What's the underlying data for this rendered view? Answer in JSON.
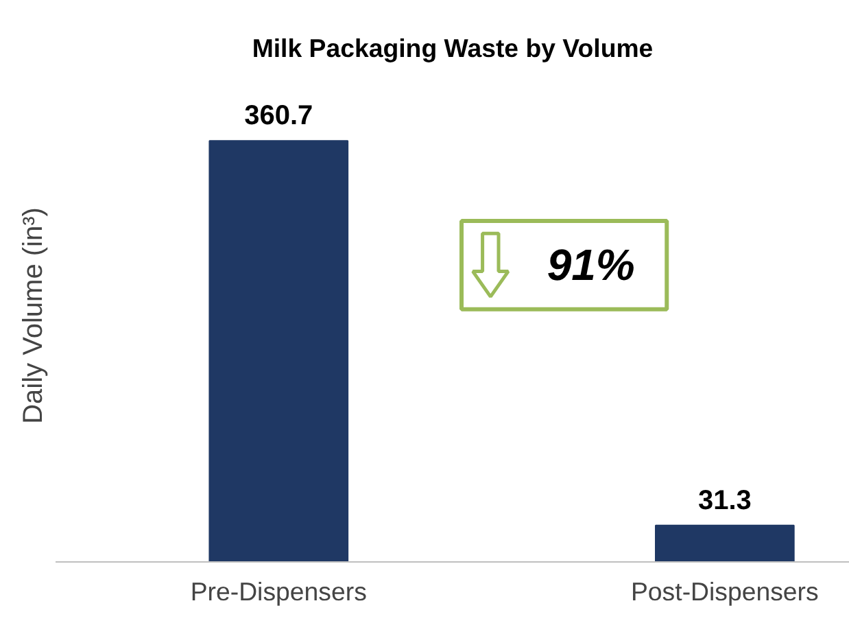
{
  "chart_data": {
    "type": "bar",
    "title": "Milk Packaging Waste by Volume",
    "ylabel": "Daily Volume (in³)",
    "categories": [
      "Pre-Dispensers",
      "Post-Dispensers"
    ],
    "values": [
      360.7,
      31.3
    ],
    "color": "#1f3864",
    "data_labels": true,
    "grid": false,
    "annotations": [
      "91%"
    ]
  }
}
